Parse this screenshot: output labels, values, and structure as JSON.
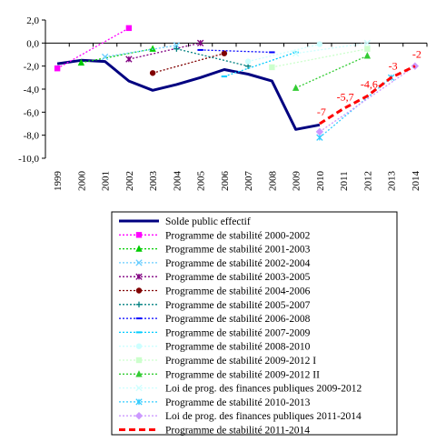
{
  "chart_data": {
    "type": "line",
    "title": "",
    "xlabel": "",
    "ylabel": "",
    "ylim": [
      -10,
      2
    ],
    "yticks": [
      "2,0",
      "0,0",
      "-2,0",
      "-4,0",
      "-6,0",
      "-8,0",
      "-10,0"
    ],
    "x": [
      "1999",
      "2000",
      "2001",
      "2002",
      "2003",
      "2004",
      "2005",
      "2006",
      "2007",
      "2008",
      "2009",
      "2010",
      "2011",
      "2012",
      "2013",
      "2014"
    ],
    "grid": false,
    "legend_position": "bottom",
    "series": [
      {
        "name": "Solde public effectif",
        "color": "#000080",
        "dash": "solid",
        "marker": "none",
        "width": 3,
        "points": [
          [
            "1999",
            -1.8
          ],
          [
            "2000",
            -1.5
          ],
          [
            "2001",
            -1.6
          ],
          [
            "2002",
            -3.3
          ],
          [
            "2003",
            -4.1
          ],
          [
            "2004",
            -3.6
          ],
          [
            "2005",
            -3.0
          ],
          [
            "2006",
            -2.3
          ],
          [
            "2007",
            -2.7
          ],
          [
            "2008",
            -3.3
          ],
          [
            "2009",
            -7.5
          ],
          [
            "2010",
            -7.1
          ]
        ]
      },
      {
        "name": "Programme de stabilité 2000-2002",
        "color": "#ff00ff",
        "dash": "dot",
        "marker": "square",
        "width": 1.3,
        "points": [
          [
            "1999",
            -2.2
          ],
          [
            "2002",
            1.3
          ]
        ]
      },
      {
        "name": "Programme de stabilité 2001-2003",
        "color": "#00cc00",
        "dash": "dot",
        "marker": "triangle",
        "width": 1.3,
        "points": [
          [
            "2000",
            -1.7
          ],
          [
            "2003",
            -0.5
          ]
        ]
      },
      {
        "name": "Programme de stabilité 2002-2004",
        "color": "#66ccff",
        "dash": "dot",
        "marker": "x",
        "width": 1.3,
        "points": [
          [
            "2001",
            -1.2
          ],
          [
            "2004",
            -0.2
          ]
        ]
      },
      {
        "name": "Programme de stabilité 2003-2005",
        "color": "#800080",
        "dash": "dot",
        "marker": "star",
        "width": 1.3,
        "points": [
          [
            "2002",
            -1.4
          ],
          [
            "2005",
            0.0
          ]
        ]
      },
      {
        "name": "Programme de stabilité 2004-2006",
        "color": "#800000",
        "dash": "dot",
        "marker": "circle",
        "width": 1.3,
        "points": [
          [
            "2003",
            -2.6
          ],
          [
            "2006",
            -0.9
          ]
        ]
      },
      {
        "name": "Programme de stabilité 2005-2007",
        "color": "#008080",
        "dash": "dot",
        "marker": "plus",
        "width": 1.3,
        "points": [
          [
            "2004",
            -0.5
          ],
          [
            "2007",
            -2.0
          ]
        ]
      },
      {
        "name": "Programme de stabilité 2006-2008",
        "color": "#0000ff",
        "dash": "dot",
        "marker": "dash",
        "width": 1.3,
        "points": [
          [
            "2005",
            -0.6
          ],
          [
            "2008",
            -0.8
          ]
        ]
      },
      {
        "name": "Programme de stabilité 2007-2009",
        "color": "#00ccff",
        "dash": "dot",
        "marker": "dash",
        "width": 1.3,
        "points": [
          [
            "2006",
            -2.9
          ],
          [
            "2009",
            -0.8
          ]
        ]
      },
      {
        "name": "Programme de stabilité 2008-2010",
        "color": "#ccffff",
        "dash": "dot",
        "marker": "circle",
        "width": 1.3,
        "points": [
          [
            "2007",
            -1.6
          ],
          [
            "2010",
            -0.1
          ]
        ]
      },
      {
        "name": "Programme de stabilité 2009-2012 I",
        "color": "#ccffcc",
        "dash": "dot",
        "marker": "square",
        "width": 1.3,
        "points": [
          [
            "2008",
            -2.1
          ],
          [
            "2012",
            -0.5
          ]
        ]
      },
      {
        "name": "Programme de stabilité 2009-2012 II",
        "color": "#33cc33",
        "dash": "dot",
        "marker": "triangle",
        "width": 1.3,
        "points": [
          [
            "2009",
            -3.9
          ],
          [
            "2012",
            -1.1
          ]
        ]
      },
      {
        "name": "Loi de prog. des finances publiques 2009-2012",
        "color": "#ccffff",
        "dash": "dot",
        "marker": "x",
        "width": 1.3,
        "points": [
          [
            "2009",
            -0.9
          ],
          [
            "2012",
            0.0
          ]
        ]
      },
      {
        "name": "Programme de stabilité 2010-2013",
        "color": "#33ccff",
        "dash": "dot",
        "marker": "star",
        "width": 1.3,
        "points": [
          [
            "2010",
            -8.2
          ],
          [
            "2013",
            -3.0
          ]
        ]
      },
      {
        "name": "Loi de prog. des finances publiques 2011-2014",
        "color": "#cc99ff",
        "dash": "dot",
        "marker": "diamond",
        "width": 1.3,
        "points": [
          [
            "2010",
            -7.7
          ],
          [
            "2014",
            -2.0
          ]
        ]
      },
      {
        "name": "Programme de stabilité 2011-2014",
        "color": "#ff0000",
        "dash": "dash",
        "marker": "none",
        "width": 3,
        "points": [
          [
            "2010",
            -7.0
          ],
          [
            "2011",
            -5.7
          ],
          [
            "2012",
            -4.6
          ],
          [
            "2013",
            -3.0
          ],
          [
            "2014",
            -2.0
          ]
        ]
      }
    ],
    "annotations": [
      {
        "text": "-7",
        "x": "2010",
        "y": -7.0
      },
      {
        "text": "-5,7",
        "x": "2011",
        "y": -5.7
      },
      {
        "text": "-4,6",
        "x": "2012",
        "y": -4.6
      },
      {
        "text": "-3",
        "x": "2013",
        "y": -3.0
      },
      {
        "text": "-2",
        "x": "2014",
        "y": -2.0
      }
    ],
    "annotation_color": "#ff0000"
  }
}
